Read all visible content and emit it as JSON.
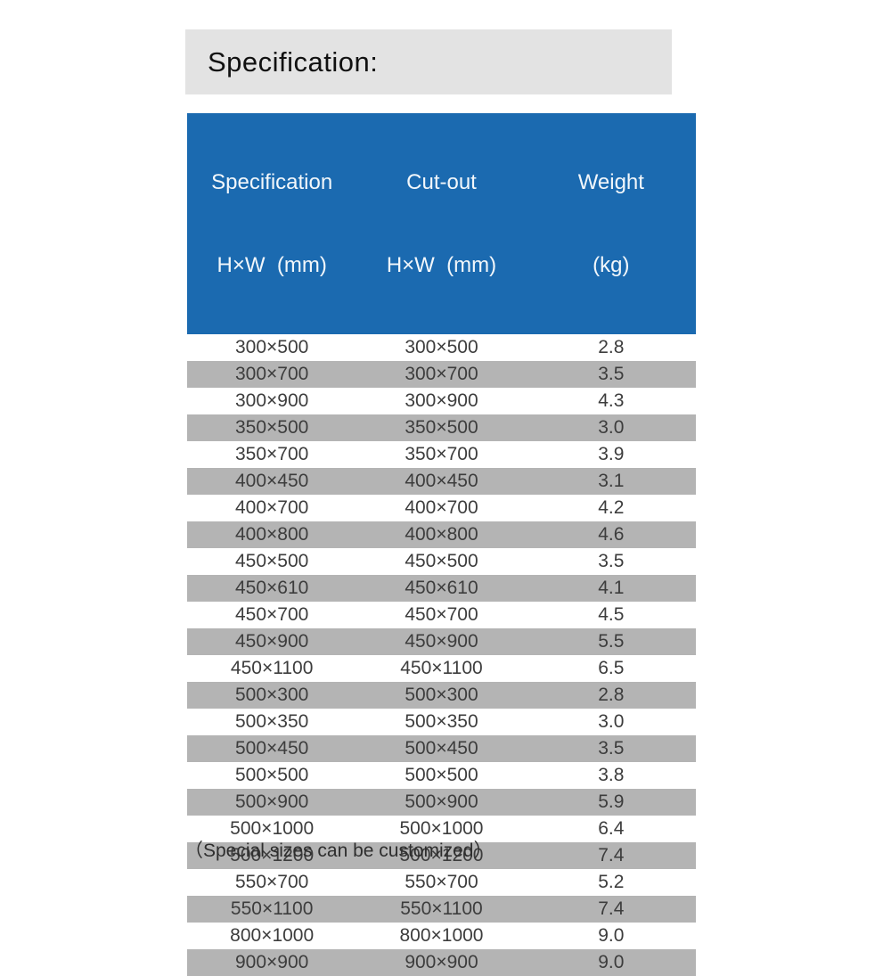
{
  "title_bar": {
    "title": "Specification:"
  },
  "table": {
    "columns": [
      {
        "line1": "Specification",
        "line2": "H×W  (mm)"
      },
      {
        "line1": "Cut-out",
        "line2": "H×W  (mm)"
      },
      {
        "line1": "Weight",
        "line2": "(kg)"
      }
    ],
    "rows": [
      {
        "spec": "300×500",
        "cutout": "300×500",
        "weight": "2.8"
      },
      {
        "spec": "300×700",
        "cutout": "300×700",
        "weight": "3.5"
      },
      {
        "spec": "300×900",
        "cutout": "300×900",
        "weight": "4.3"
      },
      {
        "spec": "350×500",
        "cutout": "350×500",
        "weight": "3.0"
      },
      {
        "spec": "350×700",
        "cutout": "350×700",
        "weight": "3.9"
      },
      {
        "spec": "400×450",
        "cutout": "400×450",
        "weight": "3.1"
      },
      {
        "spec": "400×700",
        "cutout": "400×700",
        "weight": "4.2"
      },
      {
        "spec": "400×800",
        "cutout": "400×800",
        "weight": "4.6"
      },
      {
        "spec": "450×500",
        "cutout": "450×500",
        "weight": "3.5"
      },
      {
        "spec": "450×610",
        "cutout": "450×610",
        "weight": "4.1"
      },
      {
        "spec": "450×700",
        "cutout": "450×700",
        "weight": "4.5"
      },
      {
        "spec": "450×900",
        "cutout": "450×900",
        "weight": "5.5"
      },
      {
        "spec": "450×1100",
        "cutout": "450×1100",
        "weight": "6.5"
      },
      {
        "spec": "500×300",
        "cutout": "500×300",
        "weight": "2.8"
      },
      {
        "spec": "500×350",
        "cutout": "500×350",
        "weight": "3.0"
      },
      {
        "spec": "500×450",
        "cutout": "500×450",
        "weight": "3.5"
      },
      {
        "spec": "500×500",
        "cutout": "500×500",
        "weight": "3.8"
      },
      {
        "spec": "500×900",
        "cutout": "500×900",
        "weight": "5.9"
      },
      {
        "spec": "500×1000",
        "cutout": "500×1000",
        "weight": "6.4"
      },
      {
        "spec": "500×1200",
        "cutout": "500×1200",
        "weight": "7.4"
      },
      {
        "spec": "550×700",
        "cutout": "550×700",
        "weight": "5.2"
      },
      {
        "spec": "550×1100",
        "cutout": "550×1100",
        "weight": "7.4"
      },
      {
        "spec": "800×1000",
        "cutout": "800×1000",
        "weight": "9.0"
      },
      {
        "spec": "900×900",
        "cutout": "900×900",
        "weight": "9.0"
      }
    ]
  },
  "footer": {
    "note": "（Special sizes can be customized）"
  },
  "colors": {
    "header_blue": "#1b6ab0",
    "stripe_gray": "#b4b4b4",
    "title_bar_gray": "#e3e3e3",
    "row_text": "#3d3d3d"
  }
}
